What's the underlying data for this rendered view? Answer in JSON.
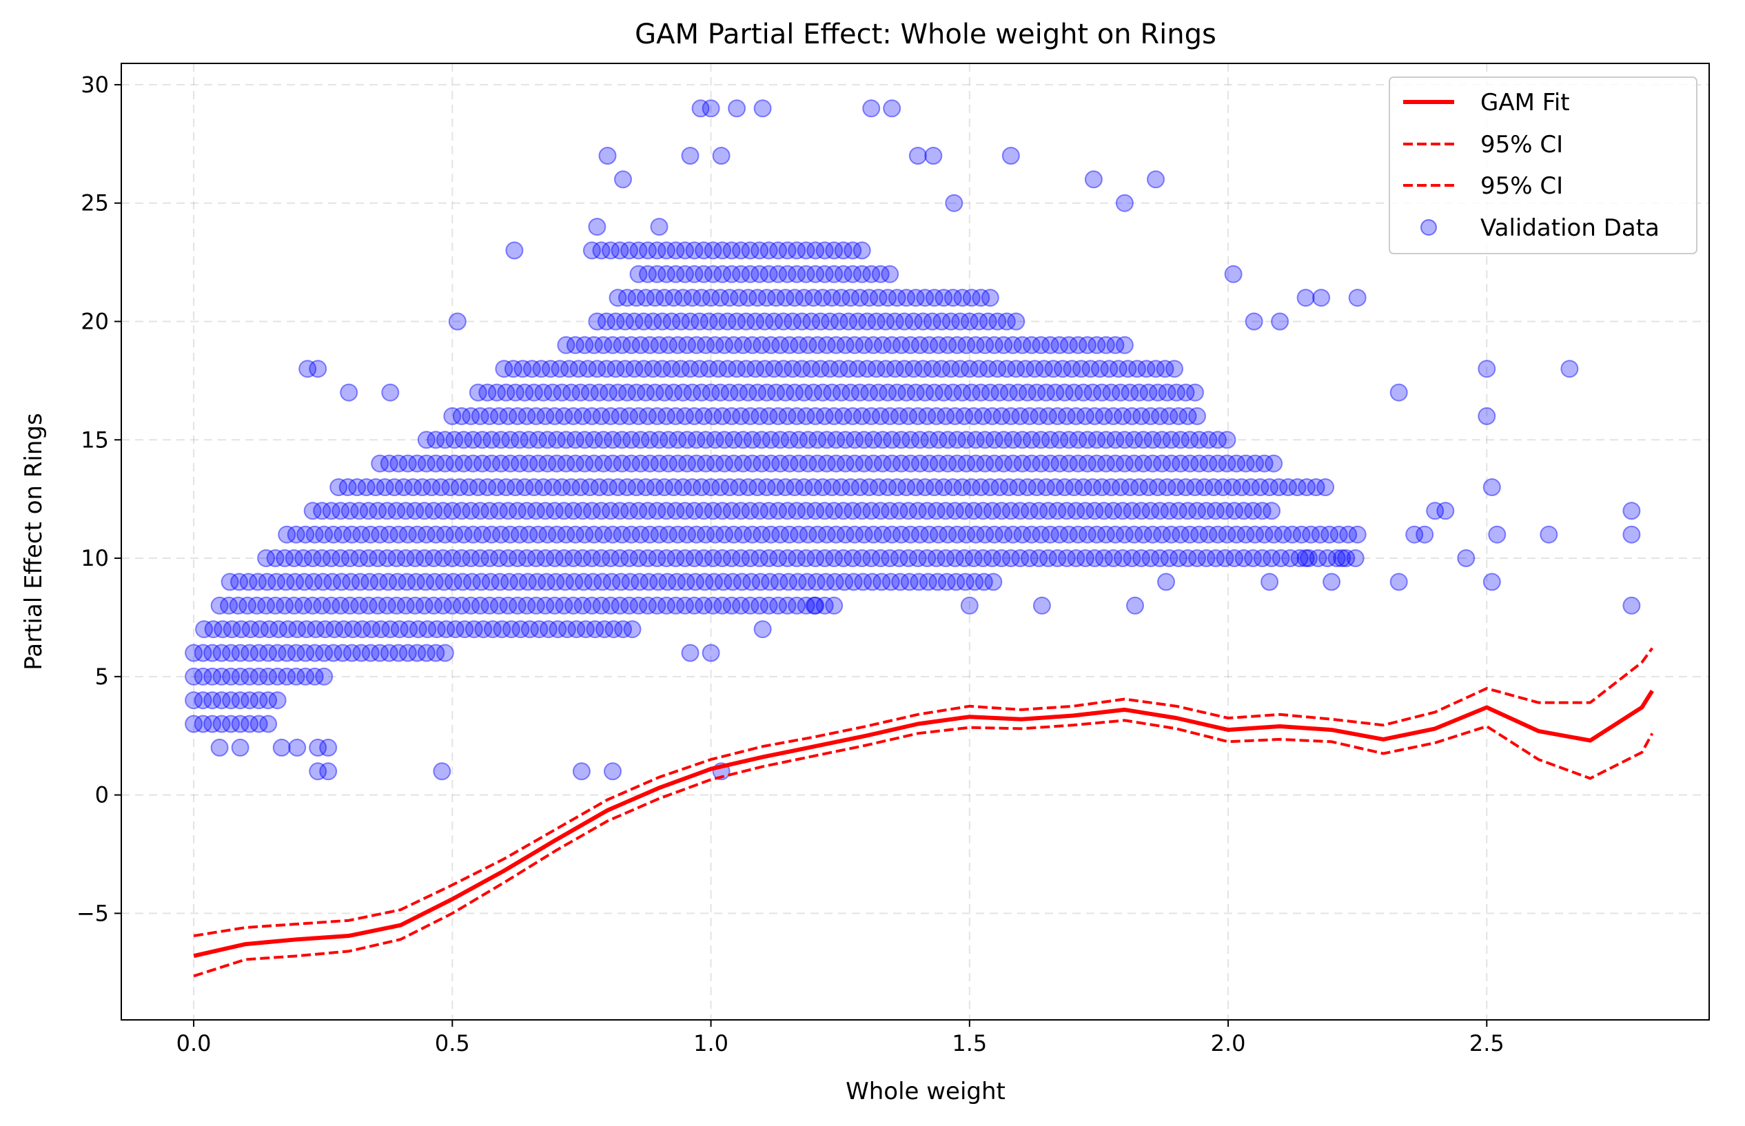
{
  "chart_data": {
    "type": "scatter",
    "title": "GAM Partial Effect: Whole weight on Rings",
    "xlabel": "Whole weight",
    "ylabel": "Partial Effect on Rings",
    "xlim": [
      -0.14,
      2.93
    ],
    "ylim": [
      -9.5,
      30.9
    ],
    "xticks": [
      0.0,
      0.5,
      1.0,
      1.5,
      2.0,
      2.5
    ],
    "xtick_labels": [
      "0.0",
      "0.5",
      "1.0",
      "1.5",
      "2.0",
      "2.5"
    ],
    "yticks": [
      -5,
      0,
      5,
      10,
      15,
      20,
      25,
      30
    ],
    "ytick_labels": [
      "−5",
      "0",
      "5",
      "10",
      "15",
      "20",
      "25",
      "30"
    ],
    "grid": true,
    "legend_position": "top-right",
    "colors": {
      "fit": "#ff0000",
      "scatter": "#0000ff"
    },
    "series": [
      {
        "name": "GAM Fit",
        "kind": "line",
        "style": "solid",
        "x": [
          0.0,
          0.1,
          0.2,
          0.3,
          0.4,
          0.5,
          0.6,
          0.7,
          0.8,
          0.9,
          1.0,
          1.1,
          1.2,
          1.3,
          1.4,
          1.5,
          1.6,
          1.7,
          1.8,
          1.9,
          2.0,
          2.1,
          2.2,
          2.3,
          2.4,
          2.5,
          2.6,
          2.7,
          2.8,
          2.82
        ],
        "y": [
          -6.8,
          -6.3,
          -6.1,
          -5.95,
          -5.5,
          -4.4,
          -3.2,
          -1.9,
          -0.65,
          0.3,
          1.1,
          1.6,
          2.05,
          2.5,
          3.0,
          3.3,
          3.2,
          3.35,
          3.6,
          3.25,
          2.75,
          2.9,
          2.75,
          2.35,
          2.8,
          3.7,
          2.7,
          2.3,
          3.7,
          4.4
        ]
      },
      {
        "name": "95% CI",
        "kind": "line",
        "style": "dashed",
        "x": [
          0.0,
          0.1,
          0.2,
          0.3,
          0.4,
          0.5,
          0.6,
          0.7,
          0.8,
          0.9,
          1.0,
          1.1,
          1.2,
          1.3,
          1.4,
          1.5,
          1.6,
          1.7,
          1.8,
          1.9,
          2.0,
          2.1,
          2.2,
          2.3,
          2.4,
          2.5,
          2.6,
          2.7,
          2.8,
          2.82
        ],
        "y": [
          -5.95,
          -5.6,
          -5.45,
          -5.3,
          -4.85,
          -3.8,
          -2.7,
          -1.45,
          -0.2,
          0.75,
          1.5,
          2.05,
          2.45,
          2.9,
          3.4,
          3.75,
          3.6,
          3.75,
          4.05,
          3.75,
          3.25,
          3.4,
          3.2,
          2.95,
          3.5,
          4.5,
          3.9,
          3.9,
          5.6,
          6.2
        ]
      },
      {
        "name": "95% CI",
        "kind": "line",
        "style": "dashed",
        "x": [
          0.0,
          0.1,
          0.2,
          0.3,
          0.4,
          0.5,
          0.6,
          0.7,
          0.8,
          0.9,
          1.0,
          1.1,
          1.2,
          1.3,
          1.4,
          1.5,
          1.6,
          1.7,
          1.8,
          1.9,
          2.0,
          2.1,
          2.2,
          2.3,
          2.4,
          2.5,
          2.6,
          2.7,
          2.8,
          2.82
        ],
        "y": [
          -7.65,
          -6.95,
          -6.8,
          -6.6,
          -6.1,
          -5.0,
          -3.7,
          -2.35,
          -1.1,
          -0.15,
          0.65,
          1.2,
          1.65,
          2.1,
          2.6,
          2.85,
          2.8,
          2.95,
          3.15,
          2.8,
          2.25,
          2.35,
          2.25,
          1.75,
          2.2,
          2.9,
          1.5,
          0.7,
          1.8,
          2.6
        ]
      },
      {
        "name": "Validation Data",
        "kind": "scatter",
        "bands": [
          [
            3,
            0.0,
            0.15
          ],
          [
            4,
            0.0,
            0.17
          ],
          [
            5,
            0.0,
            0.26
          ],
          [
            6,
            0.0,
            0.5
          ],
          [
            7,
            0.02,
            0.85
          ],
          [
            8,
            0.05,
            1.25
          ],
          [
            9,
            0.07,
            1.55
          ],
          [
            10,
            0.14,
            2.25
          ],
          [
            11,
            0.18,
            2.25
          ],
          [
            12,
            0.23,
            2.1
          ],
          [
            13,
            0.28,
            2.2
          ],
          [
            14,
            0.36,
            2.1
          ],
          [
            15,
            0.45,
            2.0
          ],
          [
            16,
            0.5,
            1.95
          ],
          [
            17,
            0.55,
            1.95
          ],
          [
            18,
            0.6,
            1.9
          ],
          [
            19,
            0.72,
            1.8
          ],
          [
            20,
            0.78,
            1.6
          ],
          [
            21,
            0.82,
            1.55
          ],
          [
            22,
            0.86,
            1.35
          ],
          [
            23,
            0.77,
            1.3
          ]
        ],
        "points": [
          [
            0.05,
            2
          ],
          [
            0.09,
            2
          ],
          [
            0.17,
            2
          ],
          [
            0.2,
            2
          ],
          [
            0.24,
            2
          ],
          [
            0.26,
            2
          ],
          [
            0.24,
            1
          ],
          [
            0.26,
            1
          ],
          [
            0.48,
            1
          ],
          [
            0.75,
            1
          ],
          [
            0.81,
            1
          ],
          [
            1.02,
            1
          ],
          [
            0.22,
            18
          ],
          [
            0.24,
            18
          ],
          [
            0.3,
            17
          ],
          [
            0.38,
            17
          ],
          [
            0.51,
            20
          ],
          [
            0.62,
            23
          ],
          [
            0.78,
            24
          ],
          [
            0.8,
            27
          ],
          [
            0.83,
            26
          ],
          [
            0.9,
            24
          ],
          [
            0.96,
            27
          ],
          [
            0.98,
            29
          ],
          [
            1.0,
            29
          ],
          [
            1.02,
            27
          ],
          [
            1.05,
            29
          ],
          [
            1.1,
            29
          ],
          [
            1.31,
            29
          ],
          [
            1.35,
            29
          ],
          [
            1.4,
            27
          ],
          [
            1.43,
            27
          ],
          [
            1.47,
            25
          ],
          [
            1.58,
            27
          ],
          [
            1.74,
            26
          ],
          [
            1.8,
            25
          ],
          [
            1.86,
            26
          ],
          [
            2.01,
            22
          ],
          [
            2.05,
            20
          ],
          [
            2.1,
            20
          ],
          [
            2.15,
            21
          ],
          [
            2.18,
            21
          ],
          [
            2.25,
            21
          ],
          [
            2.33,
            17
          ],
          [
            2.36,
            11
          ],
          [
            2.38,
            11
          ],
          [
            2.4,
            12
          ],
          [
            2.42,
            12
          ],
          [
            2.46,
            10
          ],
          [
            2.33,
            9
          ],
          [
            2.5,
            18
          ],
          [
            2.5,
            16
          ],
          [
            2.51,
            13
          ],
          [
            2.51,
            9
          ],
          [
            2.52,
            11
          ],
          [
            2.62,
            11
          ],
          [
            2.66,
            18
          ],
          [
            2.78,
            12
          ],
          [
            2.78,
            11
          ],
          [
            2.78,
            8
          ],
          [
            0.96,
            6
          ],
          [
            1.0,
            6
          ],
          [
            1.1,
            7
          ],
          [
            1.2,
            8
          ],
          [
            1.5,
            8
          ],
          [
            1.64,
            8
          ],
          [
            1.82,
            8
          ],
          [
            1.88,
            9
          ],
          [
            2.08,
            9
          ],
          [
            2.15,
            10
          ],
          [
            2.2,
            9
          ],
          [
            2.22,
            10
          ]
        ]
      }
    ]
  }
}
